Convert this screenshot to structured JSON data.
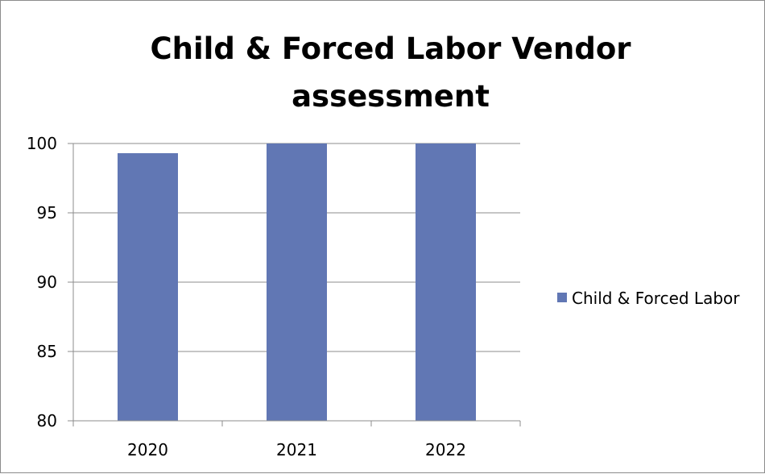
{
  "chart_data": {
    "type": "bar",
    "title_lines": [
      "Child & Forced Labor Vendor",
      "assessment"
    ],
    "categories": [
      "2020",
      "2021",
      "2022"
    ],
    "series": [
      {
        "name": "Child & Forced Labor",
        "values": [
          99.3,
          100,
          100
        ],
        "color": "#6177b4"
      }
    ],
    "xlabel": "",
    "ylabel": "",
    "ylim": [
      80,
      100
    ],
    "yticks": [
      80,
      85,
      90,
      95,
      100
    ],
    "grid": true,
    "legend_position": "right"
  }
}
